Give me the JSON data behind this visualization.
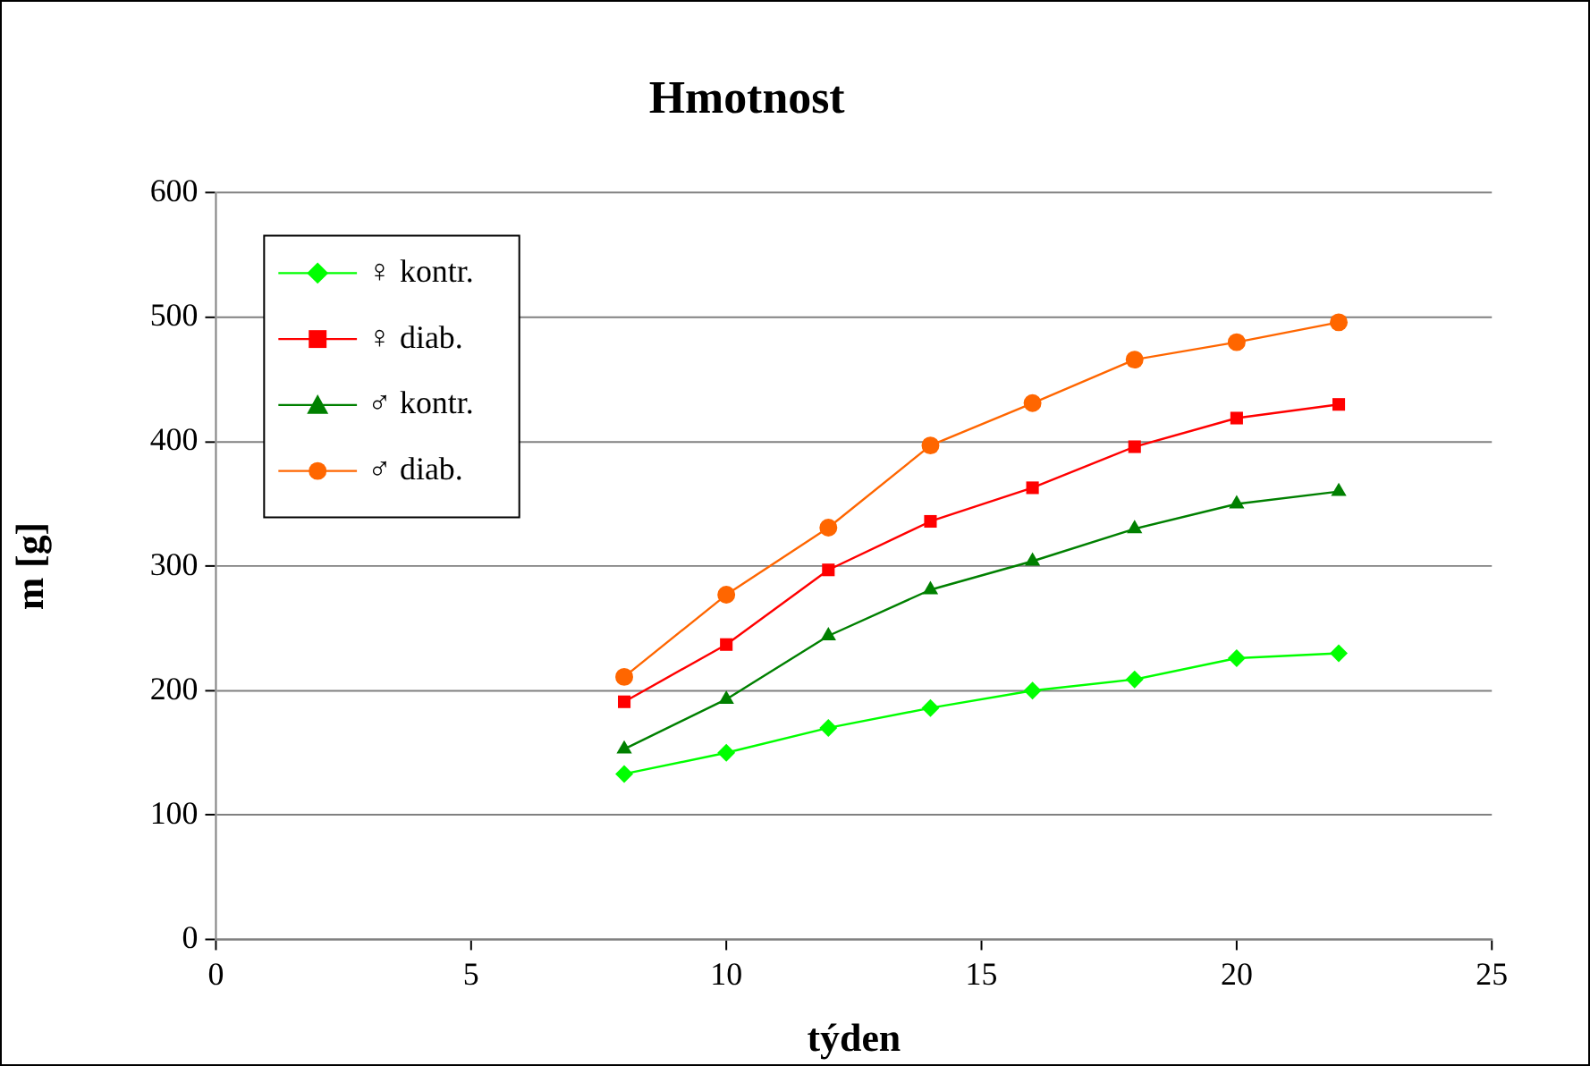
{
  "chart_data": {
    "type": "line",
    "title": "Hmotnost",
    "xlabel": "týden",
    "ylabel": "m [g]",
    "x": [
      8,
      10,
      12,
      14,
      16,
      18,
      20,
      22
    ],
    "xlim": [
      0,
      25
    ],
    "xticks": [
      0,
      5,
      10,
      15,
      20,
      25
    ],
    "ylim": [
      0,
      600
    ],
    "yticks": [
      0,
      100,
      200,
      300,
      400,
      500,
      600
    ],
    "grid": "y",
    "legend": "top left",
    "line_style": "solid",
    "series": [
      {
        "name": "♀ kontr.",
        "color": "#00ff00",
        "marker": "diamond",
        "values": [
          133,
          150,
          170,
          186,
          200,
          209,
          226,
          230
        ]
      },
      {
        "name": "♀ diab.",
        "color": "#ff0000",
        "marker": "square",
        "values": [
          191,
          237,
          297,
          336,
          363,
          396,
          419,
          430
        ]
      },
      {
        "name": "♂ kontr.",
        "color": "#008000",
        "marker": "triangle",
        "values": [
          153,
          193,
          244,
          281,
          304,
          330,
          350,
          360
        ]
      },
      {
        "name": "♂ diab.",
        "color": "#ff6600",
        "marker": "circle",
        "values": [
          211,
          277,
          331,
          397,
          431,
          466,
          480,
          496
        ]
      }
    ]
  }
}
